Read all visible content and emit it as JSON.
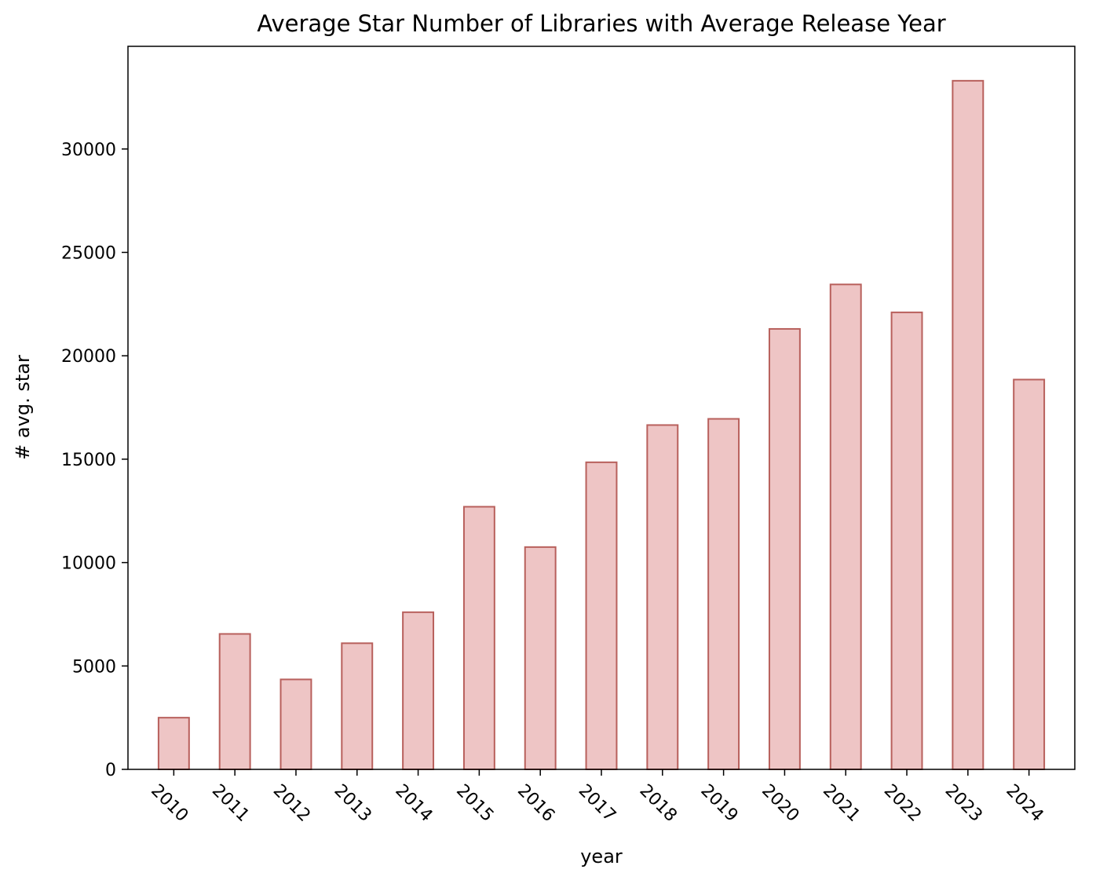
{
  "chart_data": {
    "type": "bar",
    "title": "Average Star Number of Libraries with Average Release Year",
    "xlabel": "year",
    "ylabel": "# avg. star",
    "categories": [
      "2010",
      "2011",
      "2012",
      "2013",
      "2014",
      "2015",
      "2016",
      "2017",
      "2018",
      "2019",
      "2020",
      "2021",
      "2022",
      "2023",
      "2024"
    ],
    "values": [
      2500,
      6550,
      4350,
      6100,
      7600,
      12700,
      10750,
      14850,
      16650,
      16950,
      21300,
      23450,
      22100,
      33300,
      18850
    ],
    "ylim": [
      0,
      34965
    ],
    "yticks": [
      0,
      5000,
      10000,
      15000,
      20000,
      25000,
      30000
    ],
    "ytick_labels": [
      "0",
      "5000",
      "10000",
      "15000",
      "20000",
      "25000",
      "30000"
    ],
    "grid": false,
    "xtick_rotation": -45,
    "colors": {
      "bar_fill": "#eec5c5",
      "bar_edge": "#b8605c"
    }
  }
}
